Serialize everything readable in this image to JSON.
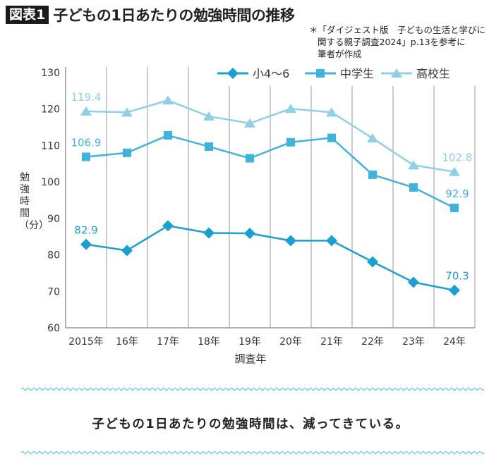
{
  "header": {
    "badge": "図表1",
    "title": "子どもの1日あたりの勉強時間の推移",
    "source_line1": "＊「ダイジェスト版　子どもの生活と学びに",
    "source_line2": "関する親子調査2024」p.13を参考に",
    "source_line3": "筆者が作成"
  },
  "conclusion": "子どもの1日あたりの勉強時間は、減ってきている。",
  "colors": {
    "elementary": "#1a9fd0",
    "middle": "#3fb3dc",
    "high": "#8fd0e6",
    "grid": "#999999",
    "wave": "#5cc6de"
  },
  "chart_data": {
    "type": "line",
    "title": "子どもの1日あたりの勉強時間の推移",
    "xlabel": "調査年",
    "ylabel": "勉強時間（分）",
    "categories": [
      "2015年",
      "16年",
      "17年",
      "18年",
      "19年",
      "20年",
      "21年",
      "22年",
      "23年",
      "24年"
    ],
    "ylim": [
      60,
      130
    ],
    "yticks": [
      60,
      70,
      80,
      90,
      100,
      110,
      120,
      130
    ],
    "grid": "vertical",
    "legend": "top-right",
    "series": [
      {
        "name": "小4〜6",
        "marker": "diamond",
        "values": [
          82.9,
          81.2,
          88.0,
          86.0,
          85.9,
          83.9,
          83.9,
          78.1,
          72.5,
          70.3
        ],
        "labels": {
          "0": "82.9",
          "9": "70.3"
        }
      },
      {
        "name": "中学生",
        "marker": "square",
        "values": [
          106.9,
          108.0,
          112.8,
          109.7,
          106.5,
          110.9,
          112.1,
          102.0,
          98.5,
          92.9
        ],
        "labels": {
          "0": "106.9",
          "9": "92.9"
        }
      },
      {
        "name": "高校生",
        "marker": "triangle",
        "values": [
          119.4,
          119.1,
          122.4,
          118.0,
          116.1,
          120.1,
          119.1,
          112.0,
          104.6,
          102.8
        ],
        "labels": {
          "0": "119.4",
          "9": "102.8"
        }
      }
    ]
  }
}
